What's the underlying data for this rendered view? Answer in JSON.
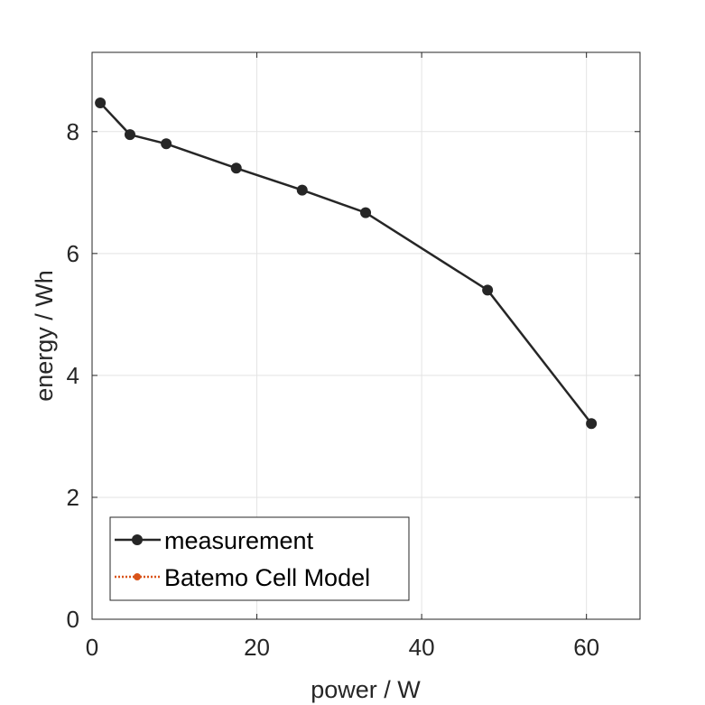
{
  "chart_data": {
    "type": "line",
    "xlabel": "power / W",
    "ylabel": "energy / Wh",
    "xlim": [
      0,
      66.5
    ],
    "ylim": [
      0,
      9.3
    ],
    "xticks": [
      0,
      20,
      40,
      60
    ],
    "yticks": [
      0,
      2,
      4,
      6,
      8
    ],
    "grid": true,
    "legend_position": "bottom-left",
    "series": [
      {
        "name": "measurement",
        "color": "#262626",
        "marker": "circle",
        "line_style": "solid",
        "points": [
          {
            "x": 1.0,
            "y": 8.47
          },
          {
            "x": 4.6,
            "y": 7.95
          },
          {
            "x": 9.0,
            "y": 7.8
          },
          {
            "x": 17.5,
            "y": 7.4
          },
          {
            "x": 25.5,
            "y": 7.04
          },
          {
            "x": 33.2,
            "y": 6.67
          },
          {
            "x": 48.0,
            "y": 5.4
          },
          {
            "x": 60.6,
            "y": 3.21
          }
        ]
      },
      {
        "name": "Batemo Cell Model",
        "color": "#D95319",
        "marker": "circle",
        "line_style": "dotted",
        "points": []
      }
    ]
  }
}
